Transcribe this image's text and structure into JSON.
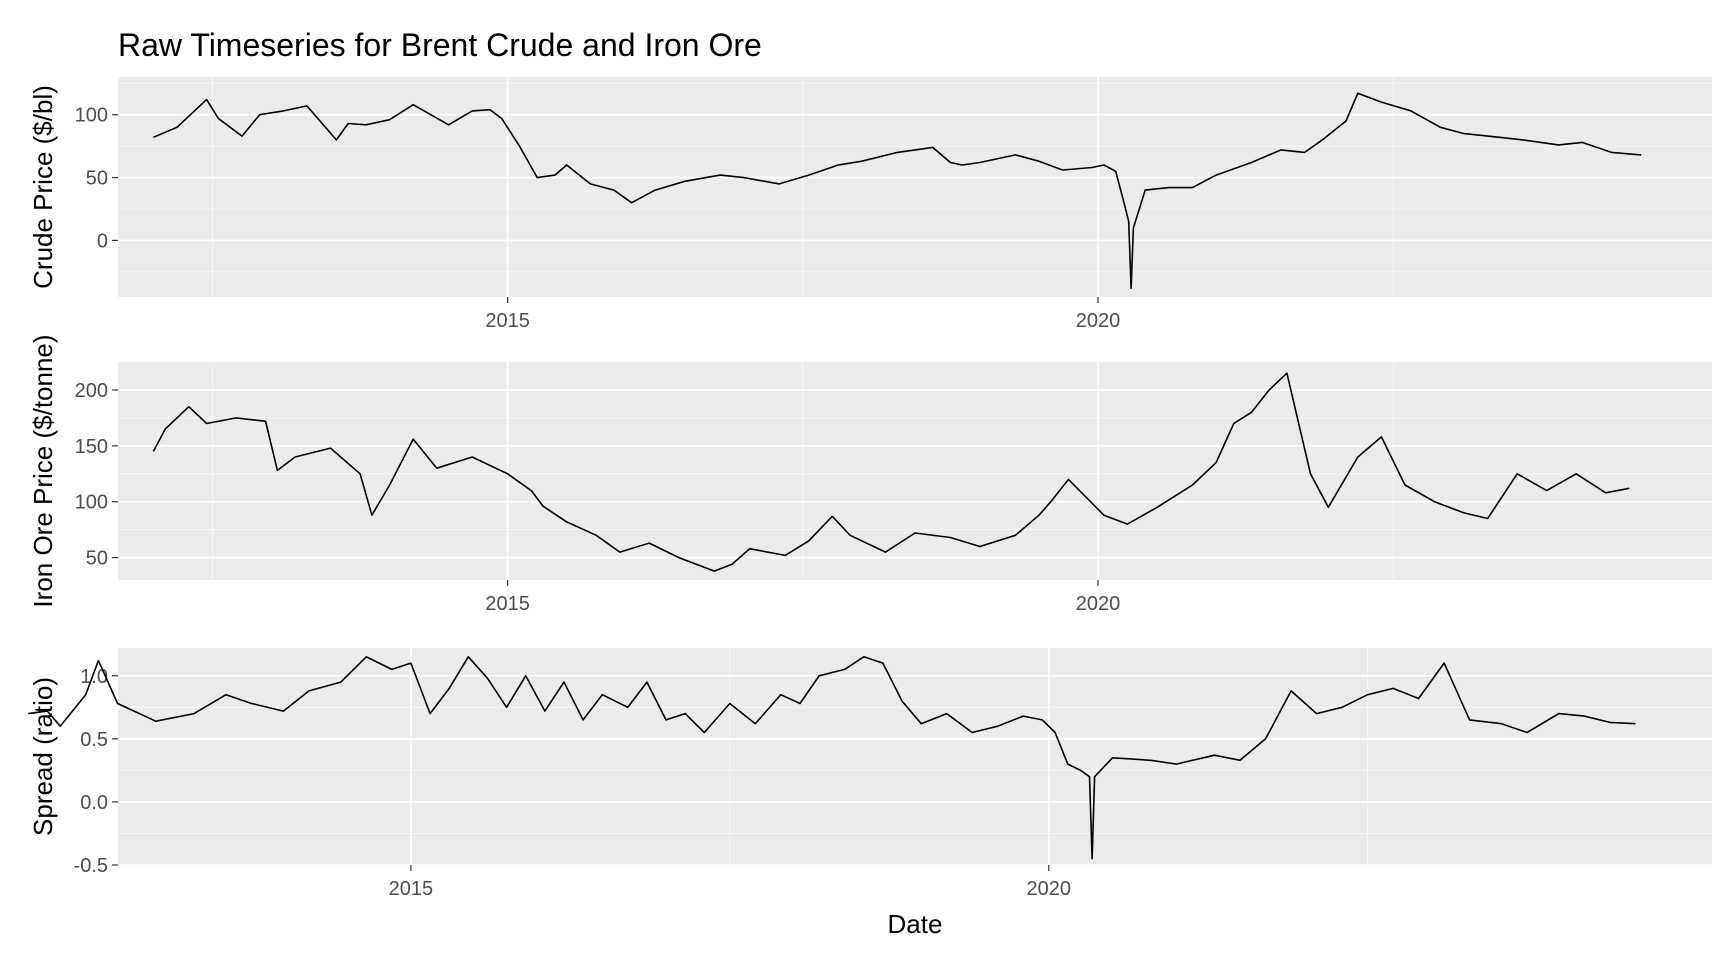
{
  "title": "Raw Timeseries for Brent Crude and Iron Ore",
  "colors": {
    "panel": "#ebebeb",
    "grid": "#ffffff",
    "line": "#000000",
    "tick_text": "#4d4d4d"
  },
  "chart_data": [
    {
      "type": "line",
      "name": "crude",
      "ylabel": "Crude Price ($/bl)",
      "xlabel": "",
      "xlim": [
        2011.7,
        2025.2
      ],
      "ylim": [
        -45,
        130
      ],
      "y_ticks": [
        0,
        50,
        100
      ],
      "y_tick_labels": [
        "0",
        "50",
        "100"
      ],
      "x_ticks": [
        2015,
        2020
      ],
      "x_tick_labels": [
        "2015",
        "2020"
      ],
      "grid": true,
      "series": [
        {
          "x": [
            2012.0,
            2012.2,
            2012.45,
            2012.55,
            2012.75,
            2012.9,
            2013.1,
            2013.3,
            2013.55,
            2013.65,
            2013.8,
            2014.0,
            2014.2,
            2014.5,
            2014.7,
            2014.85,
            2014.95,
            2015.1,
            2015.25,
            2015.4,
            2015.5,
            2015.7,
            2015.9,
            2016.05,
            2016.25,
            2016.5,
            2016.8,
            2017.0,
            2017.3,
            2017.55,
            2017.8,
            2018.0,
            2018.3,
            2018.6,
            2018.75,
            2018.85,
            2019.0,
            2019.3,
            2019.5,
            2019.7,
            2019.95,
            2020.05,
            2020.15,
            2020.22,
            2020.26,
            2020.28,
            2020.3,
            2020.4,
            2020.6,
            2020.8,
            2021.0,
            2021.3,
            2021.55,
            2021.75,
            2021.9,
            2022.1,
            2022.2,
            2022.4,
            2022.65,
            2022.9,
            2023.1,
            2023.4,
            2023.6,
            2023.9,
            2024.1,
            2024.35,
            2024.6
          ],
          "y": [
            82,
            90,
            112,
            97,
            83,
            100,
            103,
            107,
            80,
            93,
            92,
            96,
            108,
            92,
            103,
            104,
            97,
            75,
            50,
            52,
            60,
            45,
            40,
            30,
            40,
            47,
            52,
            50,
            45,
            52,
            60,
            63,
            70,
            74,
            62,
            60,
            62,
            68,
            63,
            56,
            58,
            60,
            55,
            30,
            15,
            -38,
            10,
            40,
            42,
            42,
            52,
            62,
            72,
            70,
            80,
            95,
            117,
            110,
            103,
            90,
            85,
            82,
            80,
            76,
            78,
            70,
            68
          ]
        }
      ]
    },
    {
      "type": "line",
      "name": "iron",
      "ylabel": "Iron Ore Price ($/tonne)",
      "xlabel": "",
      "xlim": [
        2011.7,
        2025.2
      ],
      "ylim": [
        30,
        225
      ],
      "y_ticks": [
        50,
        100,
        150,
        200
      ],
      "y_tick_labels": [
        "50",
        "100",
        "150",
        "200"
      ],
      "x_ticks": [
        2015,
        2020
      ],
      "x_tick_labels": [
        "2015",
        "2020"
      ],
      "grid": true,
      "series": [
        {
          "x": [
            2012.0,
            2012.1,
            2012.3,
            2012.45,
            2012.7,
            2012.95,
            2013.05,
            2013.2,
            2013.5,
            2013.75,
            2013.85,
            2014.0,
            2014.2,
            2014.4,
            2014.7,
            2015.0,
            2015.2,
            2015.3,
            2015.5,
            2015.75,
            2015.95,
            2016.2,
            2016.45,
            2016.75,
            2016.9,
            2017.05,
            2017.35,
            2017.55,
            2017.75,
            2017.9,
            2018.2,
            2018.45,
            2018.75,
            2019.0,
            2019.3,
            2019.5,
            2019.6,
            2019.75,
            2020.05,
            2020.25,
            2020.5,
            2020.8,
            2021.0,
            2021.15,
            2021.3,
            2021.45,
            2021.6,
            2021.8,
            2021.95,
            2022.2,
            2022.4,
            2022.6,
            2022.85,
            2023.1,
            2023.3,
            2023.55,
            2023.8,
            2024.05,
            2024.3,
            2024.5
          ],
          "y": [
            145,
            165,
            185,
            170,
            175,
            172,
            128,
            140,
            148,
            125,
            88,
            115,
            156,
            130,
            140,
            125,
            110,
            96,
            82,
            70,
            55,
            63,
            50,
            38,
            44,
            58,
            52,
            65,
            87,
            70,
            55,
            72,
            68,
            60,
            70,
            88,
            100,
            120,
            88,
            80,
            95,
            115,
            135,
            170,
            180,
            200,
            215,
            125,
            95,
            140,
            158,
            115,
            100,
            90,
            85,
            125,
            110,
            125,
            108,
            112
          ]
        }
      ]
    },
    {
      "type": "line",
      "name": "spread",
      "ylabel": "Spread (ratio)",
      "xlabel": "Date",
      "xlim": [
        2011.7,
        2025.2
      ],
      "ylim": [
        -0.5,
        1.22
      ],
      "y_ticks": [
        -0.5,
        0.0,
        0.5,
        1.0
      ],
      "y_tick_labels": [
        "-0.5",
        "0.0",
        "0.5",
        "1.0"
      ],
      "x_ticks": [
        2015,
        2020
      ],
      "x_tick_labels": [
        "2015",
        "2020"
      ],
      "grid": true,
      "series": [
        {
          "x": [
            2012.0,
            2012.15,
            2012.25,
            2012.45,
            2012.55,
            2012.7,
            2013.0,
            2013.3,
            2013.55,
            2013.75,
            2014.0,
            2014.2,
            2014.45,
            2014.65,
            2014.85,
            2015.0,
            2015.15,
            2015.3,
            2015.45,
            2015.6,
            2015.75,
            2015.9,
            2016.05,
            2016.2,
            2016.35,
            2016.5,
            2016.7,
            2016.85,
            2017.0,
            2017.15,
            2017.3,
            2017.5,
            2017.7,
            2017.9,
            2018.05,
            2018.2,
            2018.4,
            2018.55,
            2018.7,
            2018.85,
            2019.0,
            2019.2,
            2019.4,
            2019.6,
            2019.8,
            2019.95,
            2020.05,
            2020.15,
            2020.25,
            2020.32,
            2020.34,
            2020.36,
            2020.5,
            2020.8,
            2021.0,
            2021.3,
            2021.5,
            2021.7,
            2021.9,
            2022.1,
            2022.3,
            2022.5,
            2022.7,
            2022.9,
            2023.1,
            2023.3,
            2023.55,
            2023.75,
            2024.0,
            2024.2,
            2024.4,
            2024.6
          ],
          "y": [
            0.7,
            0.72,
            0.6,
            0.85,
            1.12,
            0.78,
            0.64,
            0.7,
            0.85,
            0.78,
            0.72,
            0.88,
            0.95,
            1.15,
            1.05,
            1.1,
            0.7,
            0.9,
            1.15,
            0.98,
            0.75,
            1.0,
            0.72,
            0.95,
            0.65,
            0.85,
            0.75,
            0.95,
            0.65,
            0.7,
            0.55,
            0.78,
            0.62,
            0.85,
            0.78,
            1.0,
            1.05,
            1.15,
            1.1,
            0.8,
            0.62,
            0.7,
            0.55,
            0.6,
            0.68,
            0.65,
            0.55,
            0.3,
            0.25,
            0.2,
            -0.45,
            0.2,
            0.35,
            0.33,
            0.3,
            0.37,
            0.33,
            0.5,
            0.88,
            0.7,
            0.75,
            0.85,
            0.9,
            0.82,
            1.1,
            0.65,
            0.62,
            0.55,
            0.7,
            0.68,
            0.63,
            0.62
          ]
        }
      ]
    }
  ]
}
